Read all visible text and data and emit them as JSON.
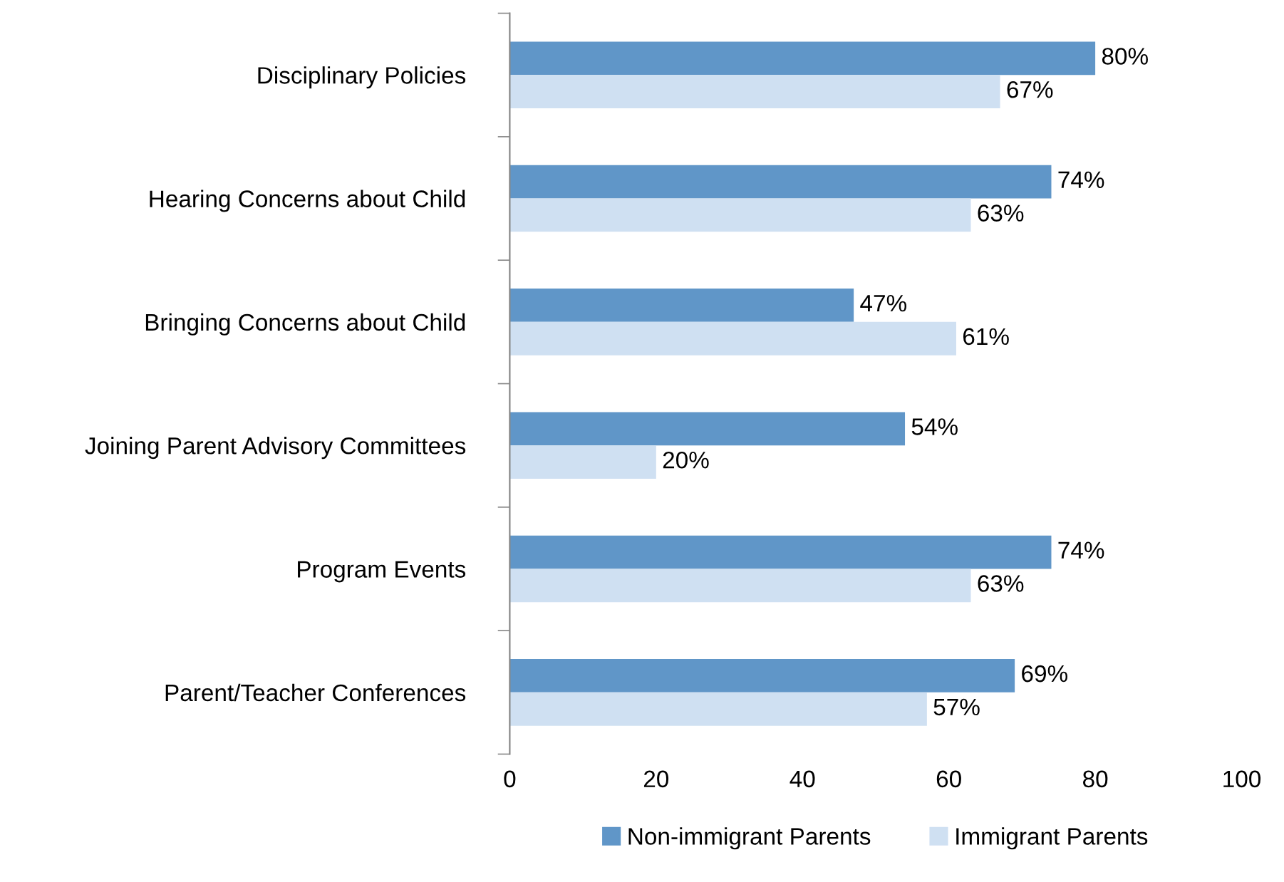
{
  "chart_data": {
    "type": "bar",
    "orientation": "horizontal",
    "categories": [
      "Disciplinary Policies",
      "Hearing Concerns about Child",
      "Bringing Concerns about Child",
      "Joining Parent Advisory Committees",
      "Program Events",
      "Parent/Teacher Conferences"
    ],
    "series": [
      {
        "name": "Non-immigrant Parents",
        "color": "#6096c8",
        "values": [
          80,
          74,
          47,
          54,
          74,
          69
        ],
        "value_labels": [
          "80%",
          "74%",
          "47%",
          "54%",
          "74%",
          "69%"
        ]
      },
      {
        "name": "Immigrant Parents",
        "color": "#cfe0f2",
        "values": [
          67,
          63,
          61,
          20,
          63,
          57
        ],
        "value_labels": [
          "67%",
          "63%",
          "61%",
          "20%",
          "63%",
          "57%"
        ]
      }
    ],
    "xlim": [
      0,
      100
    ],
    "xticks": [
      0,
      20,
      40,
      60,
      80,
      100
    ],
    "grid": false,
    "legend": "bottom"
  }
}
